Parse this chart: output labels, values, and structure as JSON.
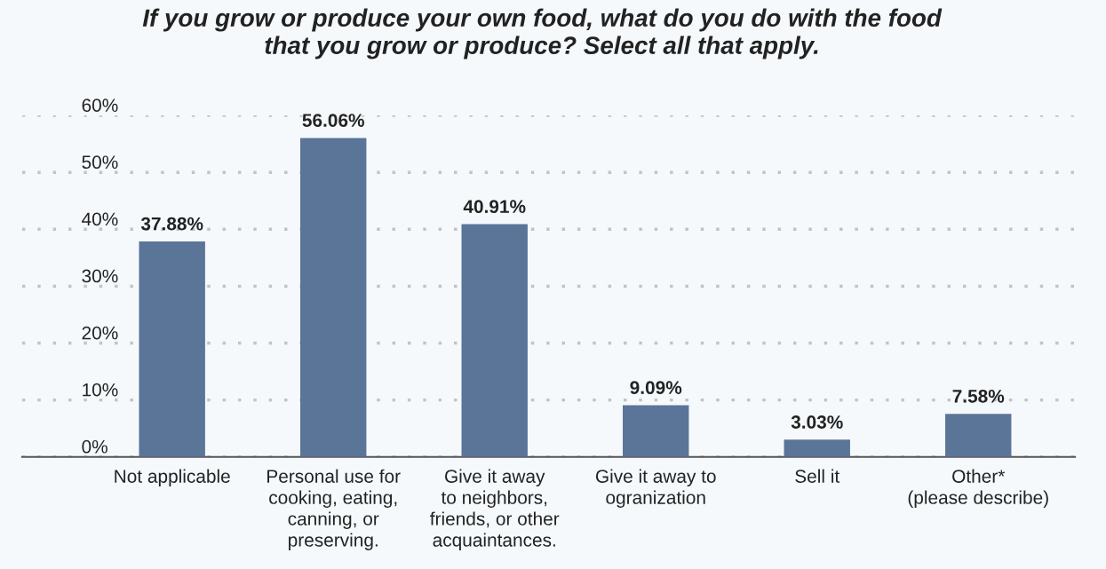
{
  "chart_data": {
    "type": "bar",
    "title": "If you grow or produce your own food, what do you do with the food\nthat you grow or produce? Select all that apply.",
    "categories": [
      "Not applicable",
      "Personal use for\ncooking, eating,\ncanning, or\npreserving.",
      "Give it away\nto neighbors,\nfriends, or other\nacquaintances.",
      "Give it away to\nogranization",
      "Sell it",
      "Other*\n(please describe)"
    ],
    "values": [
      37.88,
      56.06,
      40.91,
      9.09,
      3.03,
      7.58
    ],
    "value_labels": [
      "37.88%",
      "56.06%",
      "40.91%",
      "9.09%",
      "3.03%",
      "7.58%"
    ],
    "color": "#5b7598",
    "ylim": [
      0,
      60
    ],
    "yticks": [
      {
        "value": 0,
        "label": "0%"
      },
      {
        "value": 10,
        "label": "10%"
      },
      {
        "value": 20,
        "label": "20%"
      },
      {
        "value": 30,
        "label": "30%"
      },
      {
        "value": 40,
        "label": "40%"
      },
      {
        "value": 50,
        "label": "50%"
      },
      {
        "value": 60,
        "label": "60%"
      }
    ],
    "grid": "y"
  }
}
